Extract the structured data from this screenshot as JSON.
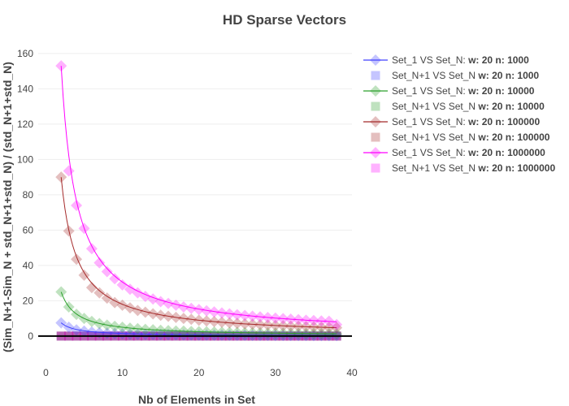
{
  "chart_data": {
    "type": "scatter",
    "title": "HD Sparse Vectors",
    "xlabel": "Nb of Elements in Set",
    "ylabel": "(Sim_N+1-Sim_N + std_N+1+std_N) / (std_N+1+std_N)",
    "xlim": [
      -1,
      40
    ],
    "ylim": [
      -12,
      165
    ],
    "x_ticks": [
      0,
      10,
      20,
      30,
      40
    ],
    "y_ticks": [
      0,
      20,
      40,
      60,
      80,
      100,
      120,
      140,
      160
    ],
    "grid": true,
    "legend_position": "right",
    "x": [
      2,
      3,
      4,
      5,
      6,
      7,
      8,
      9,
      10,
      11,
      12,
      13,
      14,
      15,
      16,
      17,
      18,
      19,
      20,
      21,
      22,
      23,
      24,
      25,
      26,
      27,
      28,
      29,
      30,
      31,
      32,
      33,
      34,
      35,
      36,
      37,
      38
    ],
    "series": [
      {
        "name": "Set_1 VS Set_N:",
        "name_bold": "w: 20 n: 1000",
        "color": "#4040ff",
        "marker": "diamond",
        "fit_line": true,
        "values": [
          7.5,
          5.0,
          3.5,
          2.8,
          2.3,
          1.9,
          1.6,
          1.4,
          1.3,
          1.1,
          1.0,
          0.95,
          0.9,
          0.85,
          0.8,
          0.75,
          0.7,
          0.65,
          0.6,
          0.6,
          0.55,
          0.5,
          0.5,
          0.48,
          0.45,
          0.43,
          0.4,
          0.4,
          0.38,
          0.36,
          0.35,
          0.34,
          0.33,
          0.32,
          0.31,
          0.3,
          0.3
        ]
      },
      {
        "name": "Set_N+1 VS Set_N",
        "name_bold": "w: 20 n: 1000",
        "color": "#4040ff",
        "marker": "square",
        "fit_line": false,
        "values": [
          0,
          0,
          0,
          0,
          0,
          0,
          0,
          0,
          0,
          0,
          0,
          0,
          0,
          0,
          0,
          0,
          0,
          0,
          0,
          0,
          0,
          0,
          0,
          0,
          0,
          0,
          0,
          0,
          0,
          0,
          0,
          0,
          0,
          0,
          0,
          0,
          0
        ]
      },
      {
        "name": "Set_1 VS Set_N:",
        "name_bold": "w: 20 n: 10000",
        "color": "#2ca02c",
        "marker": "diamond",
        "fit_line": true,
        "values": [
          25,
          16.5,
          12.3,
          10,
          8.3,
          7.1,
          6.2,
          5.5,
          5.0,
          4.5,
          4.2,
          3.8,
          3.6,
          3.3,
          3.1,
          2.9,
          2.8,
          2.6,
          2.5,
          2.4,
          2.3,
          2.2,
          2.1,
          2.0,
          1.9,
          1.85,
          1.8,
          1.7,
          1.65,
          1.6,
          1.55,
          1.5,
          1.45,
          1.4,
          1.37,
          1.33,
          1.3
        ]
      },
      {
        "name": "Set_N+1 VS Set_N",
        "name_bold": "w: 20 n: 10000",
        "color": "#2ca02c",
        "marker": "square",
        "fit_line": false,
        "values": [
          0,
          0,
          0,
          0,
          0,
          0,
          0,
          0,
          0,
          0,
          0,
          0,
          0,
          0,
          0,
          0,
          0,
          0,
          0,
          0,
          0,
          0,
          0,
          0,
          0,
          0,
          0,
          0,
          0,
          0,
          0,
          0,
          0,
          0,
          0,
          0,
          0
        ]
      },
      {
        "name": "Set_1 VS Set_N:",
        "name_bold": "w: 20 n: 100000",
        "color": "#a52a2a",
        "marker": "diamond",
        "fit_line": true,
        "values": [
          90,
          59.5,
          43.5,
          34.5,
          27.5,
          24.5,
          21.5,
          19.0,
          17.5,
          16.0,
          14.5,
          13.5,
          12.6,
          11.8,
          11.2,
          10.6,
          10.0,
          9.5,
          9.0,
          8.6,
          8.2,
          7.8,
          7.5,
          7.2,
          6.9,
          6.7,
          6.4,
          6.2,
          6.0,
          5.8,
          5.6,
          5.5,
          5.3,
          5.1,
          5.0,
          4.9,
          4.7
        ]
      },
      {
        "name": "Set_N+1 VS Set_N",
        "name_bold": "w: 20 n: 100000",
        "color": "#a52a2a",
        "marker": "square",
        "fit_line": false,
        "values": [
          0,
          0,
          0,
          0,
          0,
          0,
          0,
          0,
          0,
          0,
          0,
          0,
          0,
          0,
          0,
          0,
          0,
          0,
          0,
          0,
          0,
          0,
          0,
          0,
          0,
          0,
          0,
          0,
          0,
          0,
          0,
          0,
          0,
          0,
          0,
          0,
          0
        ]
      },
      {
        "name": "Set_1 VS Set_N:",
        "name_bold": "w: 20 n: 1000000",
        "color": "#ff00ff",
        "marker": "diamond",
        "fit_line": true,
        "values": [
          153,
          93.5,
          74,
          61,
          49.5,
          41.5,
          36.5,
          32.5,
          29,
          26.5,
          24.5,
          22.5,
          21,
          19.5,
          18.5,
          17.5,
          16.5,
          15.7,
          15.0,
          14.3,
          13.7,
          13.1,
          12.6,
          12.1,
          11.7,
          11.3,
          10.9,
          10.5,
          10.2,
          9.9,
          9.6,
          9.3,
          9.0,
          8.8,
          8.6,
          8.4,
          6.5
        ]
      },
      {
        "name": "Set_N+1 VS Set_N",
        "name_bold": "w: 20 n: 1000000",
        "color": "#ff00ff",
        "marker": "square",
        "fit_line": false,
        "values": [
          0,
          0,
          0,
          0,
          0,
          0,
          0,
          0,
          0,
          0,
          0,
          0,
          0,
          0,
          0,
          0,
          0,
          0,
          0,
          0,
          0,
          0,
          0,
          0,
          0,
          0,
          0,
          0,
          0,
          0,
          0,
          0,
          0,
          0,
          0,
          0,
          0
        ]
      }
    ]
  }
}
